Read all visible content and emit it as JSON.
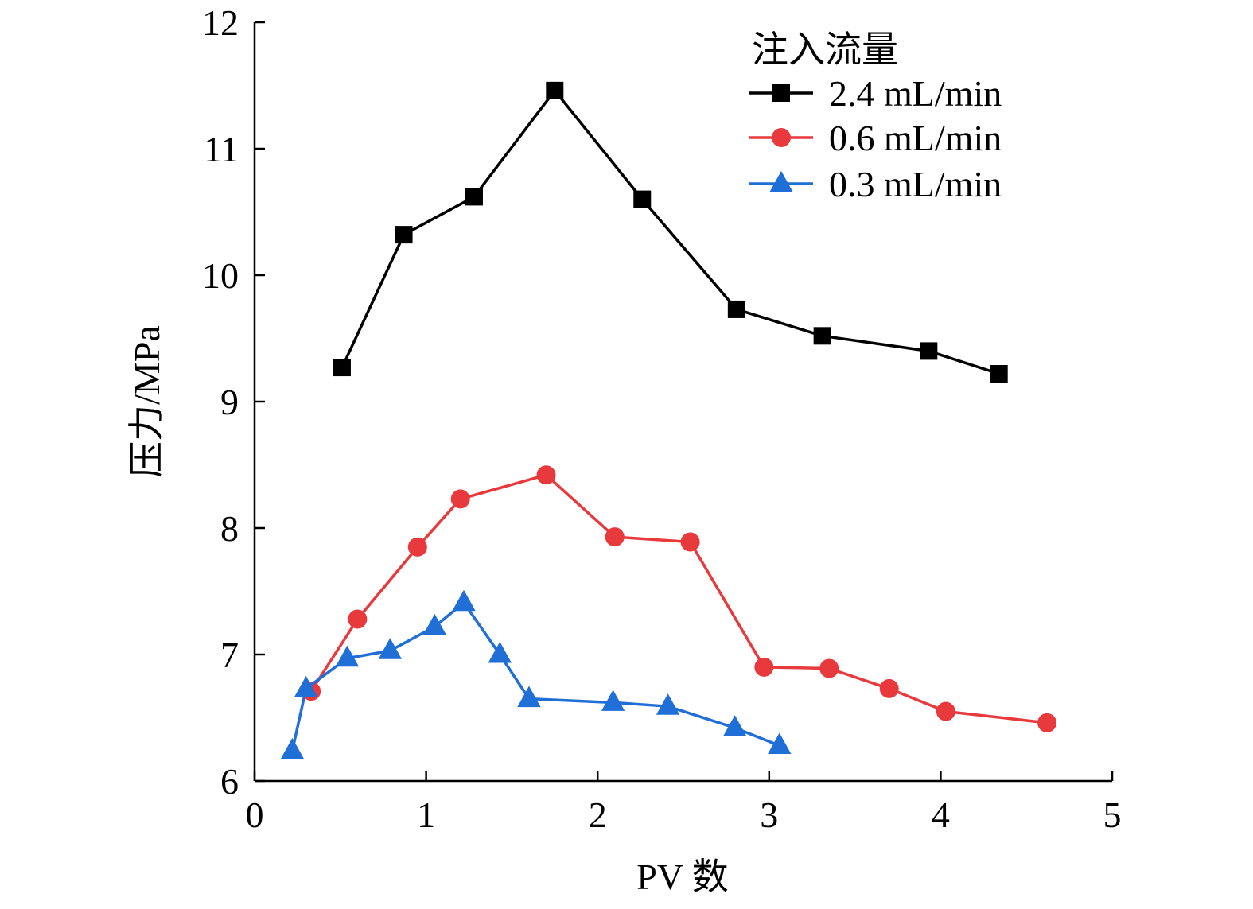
{
  "colors": {
    "axis": "#000000",
    "series_black": "#000000",
    "series_red": "#e8393d",
    "series_blue": "#1f6fd6"
  },
  "chart_data": {
    "type": "line",
    "xlabel": "PV 数",
    "ylabel": "压力/MPa",
    "xlim": [
      0,
      5
    ],
    "ylim": [
      6,
      12
    ],
    "xticks": [
      0,
      1,
      2,
      3,
      4,
      5
    ],
    "yticks": [
      6,
      7,
      8,
      9,
      10,
      11,
      12
    ],
    "grid": false,
    "legend": {
      "title": "注入流量",
      "placement": "top-right"
    },
    "series": [
      {
        "name": "2.4 mL/min",
        "marker": "square",
        "color": "#000000",
        "x": [
          0.51,
          0.87,
          1.28,
          1.75,
          2.26,
          2.81,
          3.31,
          3.93,
          4.34
        ],
        "y": [
          9.27,
          10.32,
          10.62,
          11.46,
          10.6,
          9.73,
          9.52,
          9.4,
          9.22
        ]
      },
      {
        "name": "0.6 mL/min",
        "marker": "circle",
        "color": "#e8393d",
        "x": [
          0.33,
          0.6,
          0.95,
          1.2,
          1.7,
          2.1,
          2.54,
          2.97,
          3.35,
          3.7,
          4.03,
          4.62
        ],
        "y": [
          6.71,
          7.28,
          7.85,
          8.23,
          8.42,
          7.93,
          7.89,
          6.9,
          6.89,
          6.73,
          6.55,
          6.46
        ]
      },
      {
        "name": "0.3 mL/min",
        "marker": "triangle",
        "color": "#1f6fd6",
        "x": [
          0.22,
          0.3,
          0.54,
          0.79,
          1.05,
          1.22,
          1.43,
          1.6,
          2.09,
          2.41,
          2.8,
          3.06
        ],
        "y": [
          6.24,
          6.73,
          6.97,
          7.03,
          7.22,
          7.41,
          7.0,
          6.65,
          6.62,
          6.59,
          6.42,
          6.28
        ]
      }
    ]
  }
}
